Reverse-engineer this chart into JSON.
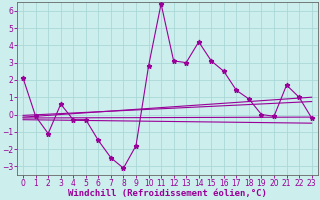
{
  "title": "",
  "xlabel": "Windchill (Refroidissement éolien,°C)",
  "ylabel": "",
  "background_color": "#cceeed",
  "grid_color": "#aad8d7",
  "line_color": "#990099",
  "spine_color": "#666666",
  "xlim": [
    -0.5,
    23.5
  ],
  "ylim": [
    -3.5,
    6.5
  ],
  "yticks": [
    -3,
    -2,
    -1,
    0,
    1,
    2,
    3,
    4,
    5,
    6
  ],
  "xticks": [
    0,
    1,
    2,
    3,
    4,
    5,
    6,
    7,
    8,
    9,
    10,
    11,
    12,
    13,
    14,
    15,
    16,
    17,
    18,
    19,
    20,
    21,
    22,
    23
  ],
  "main_x": [
    0,
    1,
    2,
    3,
    4,
    5,
    6,
    7,
    8,
    9,
    10,
    11,
    12,
    13,
    14,
    15,
    16,
    17,
    18,
    19,
    20,
    21,
    22,
    23
  ],
  "main_y": [
    2.1,
    -0.1,
    -1.1,
    0.6,
    -0.3,
    -0.3,
    -1.5,
    -2.5,
    -3.1,
    -1.8,
    2.8,
    6.4,
    3.1,
    3.0,
    4.2,
    3.1,
    2.5,
    1.4,
    0.9,
    0.0,
    -0.1,
    1.7,
    1.0,
    -0.2
  ],
  "trend1_x": [
    0,
    23
  ],
  "trend1_y": [
    -0.15,
    1.0
  ],
  "trend2_x": [
    0,
    23
  ],
  "trend2_y": [
    -0.05,
    0.75
  ],
  "trend3_x": [
    0,
    23
  ],
  "trend3_y": [
    -0.2,
    -0.15
  ],
  "trend4_x": [
    0,
    23
  ],
  "trend4_y": [
    -0.3,
    -0.5
  ],
  "tick_fontsize": 5.5,
  "xlabel_fontsize": 6.5
}
